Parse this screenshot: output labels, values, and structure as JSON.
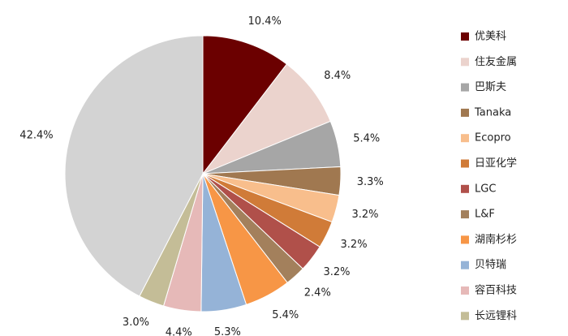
{
  "chart_data": {
    "type": "pie",
    "categories": [
      "优美科",
      "住友金属",
      "巴斯夫",
      "Tanaka",
      "Ecopro",
      "日亚化学",
      "LGC",
      "L&F",
      "湖南杉杉",
      "贝特瑞",
      "容百科技",
      "长远锂科",
      null
    ],
    "values": [
      10.4,
      8.4,
      5.4,
      3.3,
      3.2,
      3.2,
      3.2,
      2.4,
      5.4,
      5.3,
      4.4,
      3.0,
      42.4
    ],
    "value_labels": [
      "10.4%",
      "8.4%",
      "5.4%",
      "3.3%",
      "3.2%",
      "3.2%",
      "3.2%",
      "2.4%",
      "5.4%",
      "5.3%",
      "4.4%",
      "3.0%",
      "42.4%"
    ],
    "colors": [
      "#6b0000",
      "#ebd3cd",
      "#a6a6a6",
      "#a07850",
      "#f8be8c",
      "#d07b38",
      "#b0504a",
      "#a3805c",
      "#f79646",
      "#95b3d7",
      "#e6b9b8",
      "#c4bd97",
      "#d3d3d3"
    ],
    "legend": "right"
  }
}
